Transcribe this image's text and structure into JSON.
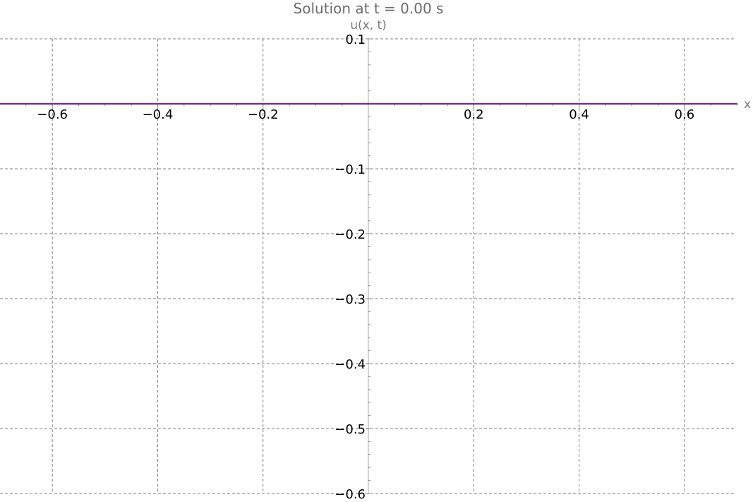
{
  "chart_data": {
    "type": "line",
    "title": "Solution at t = 0.00 s",
    "xlabel": "x",
    "ylabel": "u(x, t)",
    "xlim": [
      -0.7,
      0.7
    ],
    "ylim": [
      -0.6,
      0.1
    ],
    "grid": true,
    "x_ticks": [
      -0.6,
      -0.4,
      -0.2,
      0.2,
      0.4,
      0.6
    ],
    "x_tick_labels": [
      "−0.6",
      "−0.4",
      "−0.2",
      "0.2",
      "0.4",
      "0.6"
    ],
    "y_ticks": [
      0.1,
      -0.1,
      -0.2,
      -0.3,
      -0.4,
      -0.5,
      -0.6
    ],
    "y_tick_labels": [
      "0.1",
      "−0.1",
      "−0.2",
      "−0.3",
      "−0.4",
      "−0.5",
      "−0.6"
    ],
    "series": [
      {
        "color": "#6b3a7d",
        "x": [
          -0.7,
          0.7
        ],
        "y": [
          0,
          0
        ]
      }
    ]
  }
}
